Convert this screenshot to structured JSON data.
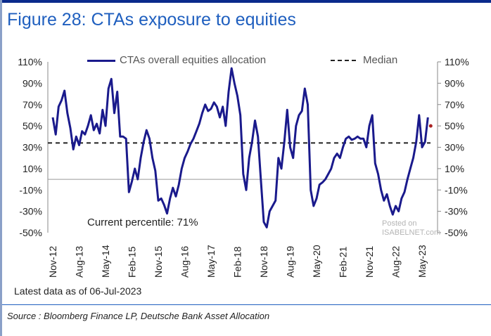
{
  "title": "Figure 28: CTAs exposure to equities",
  "legend": {
    "series_label": "CTAs overall equities allocation",
    "median_label": "Median"
  },
  "annotation": "Current percentile: 71%",
  "latest_note": "Latest data as of 06-Jul-2023",
  "source": "Source : Bloomberg Finance LP, Deutsche Bank Asset Allocation",
  "watermark": {
    "line1": "Posted on",
    "line2": "ISABELNET.com"
  },
  "colors": {
    "series": "#1a1a8c",
    "median": "#222222",
    "title": "#1f5fbf",
    "zero": "#999999"
  },
  "chart_data": {
    "type": "line",
    "title": "Figure 28: CTAs exposure to equities",
    "xlabel": "",
    "ylabel": "",
    "ylim": [
      -50,
      110
    ],
    "y_ticks": [
      110,
      90,
      70,
      50,
      30,
      10,
      -10,
      -30,
      -50
    ],
    "y_tick_labels": [
      "110%",
      "90%",
      "70%",
      "50%",
      "30%",
      "10%",
      "-10%",
      "-30%",
      "-50%"
    ],
    "x_ticks": [
      "Nov-12",
      "Aug-13",
      "May-14",
      "Feb-15",
      "Nov-15",
      "Aug-16",
      "May-17",
      "Feb-18",
      "Nov-18",
      "Aug-19",
      "May-20",
      "Feb-21",
      "Nov-21",
      "Aug-22",
      "May-23"
    ],
    "median": 34,
    "grid": false,
    "legend_position": "top",
    "series": [
      {
        "name": "CTAs overall equities allocation",
        "points": [
          [
            "2012-11",
            58
          ],
          [
            "2012-12",
            42
          ],
          [
            "2013-01",
            68
          ],
          [
            "2013-02",
            74
          ],
          [
            "2013-03",
            83
          ],
          [
            "2013-04",
            62
          ],
          [
            "2013-05",
            48
          ],
          [
            "2013-06",
            28
          ],
          [
            "2013-07",
            40
          ],
          [
            "2013-08",
            32
          ],
          [
            "2013-09",
            45
          ],
          [
            "2013-10",
            42
          ],
          [
            "2013-11",
            50
          ],
          [
            "2013-12",
            60
          ],
          [
            "2014-01",
            46
          ],
          [
            "2014-02",
            52
          ],
          [
            "2014-03",
            43
          ],
          [
            "2014-04",
            65
          ],
          [
            "2014-05",
            50
          ],
          [
            "2014-06",
            85
          ],
          [
            "2014-07",
            94
          ],
          [
            "2014-08",
            62
          ],
          [
            "2014-09",
            82
          ],
          [
            "2014-10",
            40
          ],
          [
            "2014-11",
            40
          ],
          [
            "2014-12",
            38
          ],
          [
            "2015-01",
            -12
          ],
          [
            "2015-02",
            -2
          ],
          [
            "2015-03",
            10
          ],
          [
            "2015-04",
            0
          ],
          [
            "2015-05",
            20
          ],
          [
            "2015-06",
            35
          ],
          [
            "2015-07",
            46
          ],
          [
            "2015-08",
            38
          ],
          [
            "2015-09",
            20
          ],
          [
            "2015-10",
            8
          ],
          [
            "2015-11",
            -20
          ],
          [
            "2015-12",
            -18
          ],
          [
            "2016-01",
            -24
          ],
          [
            "2016-02",
            -32
          ],
          [
            "2016-03",
            -18
          ],
          [
            "2016-04",
            -8
          ],
          [
            "2016-05",
            -16
          ],
          [
            "2016-06",
            -5
          ],
          [
            "2016-07",
            10
          ],
          [
            "2016-08",
            20
          ],
          [
            "2016-09",
            26
          ],
          [
            "2016-10",
            33
          ],
          [
            "2016-11",
            38
          ],
          [
            "2016-12",
            45
          ],
          [
            "2017-01",
            52
          ],
          [
            "2017-02",
            62
          ],
          [
            "2017-03",
            70
          ],
          [
            "2017-04",
            64
          ],
          [
            "2017-05",
            66
          ],
          [
            "2017-06",
            72
          ],
          [
            "2017-07",
            68
          ],
          [
            "2017-08",
            58
          ],
          [
            "2017-09",
            68
          ],
          [
            "2017-10",
            50
          ],
          [
            "2017-11",
            82
          ],
          [
            "2017-12",
            104
          ],
          [
            "2018-01",
            90
          ],
          [
            "2018-02",
            78
          ],
          [
            "2018-03",
            60
          ],
          [
            "2018-04",
            5
          ],
          [
            "2018-05",
            -10
          ],
          [
            "2018-06",
            20
          ],
          [
            "2018-07",
            35
          ],
          [
            "2018-08",
            55
          ],
          [
            "2018-09",
            40
          ],
          [
            "2018-10",
            0
          ],
          [
            "2018-11",
            -40
          ],
          [
            "2018-12",
            -45
          ],
          [
            "2019-01",
            -30
          ],
          [
            "2019-02",
            -25
          ],
          [
            "2019-03",
            -20
          ],
          [
            "2019-04",
            20
          ],
          [
            "2019-05",
            10
          ],
          [
            "2019-06",
            35
          ],
          [
            "2019-07",
            65
          ],
          [
            "2019-08",
            30
          ],
          [
            "2019-09",
            20
          ],
          [
            "2019-10",
            50
          ],
          [
            "2019-11",
            60
          ],
          [
            "2019-12",
            64
          ],
          [
            "2020-01",
            85
          ],
          [
            "2020-02",
            70
          ],
          [
            "2020-03",
            -10
          ],
          [
            "2020-04",
            -25
          ],
          [
            "2020-05",
            -18
          ],
          [
            "2020-06",
            -5
          ],
          [
            "2020-07",
            -3
          ],
          [
            "2020-08",
            0
          ],
          [
            "2020-09",
            5
          ],
          [
            "2020-10",
            10
          ],
          [
            "2020-11",
            20
          ],
          [
            "2020-12",
            24
          ],
          [
            "2021-01",
            20
          ],
          [
            "2021-02",
            30
          ],
          [
            "2021-03",
            38
          ],
          [
            "2021-04",
            40
          ],
          [
            "2021-05",
            37
          ],
          [
            "2021-06",
            38
          ],
          [
            "2021-07",
            40
          ],
          [
            "2021-08",
            38
          ],
          [
            "2021-09",
            38
          ],
          [
            "2021-10",
            30
          ],
          [
            "2021-11",
            50
          ],
          [
            "2021-12",
            60
          ],
          [
            "2022-01",
            15
          ],
          [
            "2022-02",
            5
          ],
          [
            "2022-03",
            -10
          ],
          [
            "2022-04",
            -20
          ],
          [
            "2022-05",
            -14
          ],
          [
            "2022-06",
            -25
          ],
          [
            "2022-07",
            -33
          ],
          [
            "2022-08",
            -25
          ],
          [
            "2022-09",
            -30
          ],
          [
            "2022-10",
            -18
          ],
          [
            "2022-11",
            -12
          ],
          [
            "2022-12",
            0
          ],
          [
            "2023-01",
            10
          ],
          [
            "2023-02",
            20
          ],
          [
            "2023-03",
            35
          ],
          [
            "2023-04",
            60
          ],
          [
            "2023-05",
            30
          ],
          [
            "2023-06",
            35
          ],
          [
            "2023-07",
            58
          ]
        ]
      }
    ]
  }
}
